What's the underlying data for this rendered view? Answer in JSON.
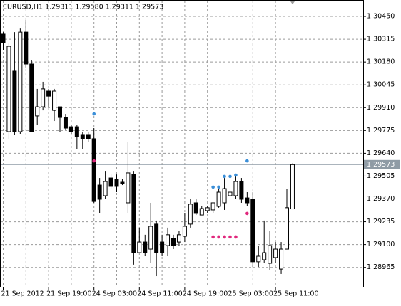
{
  "chart_data": {
    "type": "candlestick",
    "title": "EURUSD,H1 1.29311 1.29580 1.29311 1.29573",
    "categories": [
      "21 Sep 2012",
      null,
      null,
      null,
      null,
      null,
      null,
      null,
      "21 Sep 19:00",
      null,
      null,
      null,
      null,
      null,
      null,
      null,
      "24 Sep 03:00",
      null,
      null,
      null,
      null,
      null,
      null,
      null,
      "24 Sep 11:00",
      null,
      null,
      null,
      null,
      null,
      null,
      null,
      "24 Sep 19:00",
      null,
      null,
      null,
      null,
      null,
      null,
      null,
      "25 Sep 03:00",
      null,
      null,
      null,
      null,
      null,
      null,
      null,
      "25 Sep 11:00",
      null,
      null,
      null
    ],
    "open": [
      1.30345,
      1.29768,
      1.30126,
      1.29768,
      1.30357,
      1.30168,
      1.29861,
      1.29915,
      1.30008,
      1.29894,
      1.29915,
      1.29852,
      1.29797,
      1.29797,
      1.29747,
      1.29747,
      1.29726,
      1.29452,
      1.29389,
      1.29494,
      1.29486,
      1.29469,
      1.29347,
      1.29515,
      1.29052,
      1.29115,
      1.29073,
      1.29221,
      1.29115,
      1.29094,
      1.29136,
      1.29115,
      1.29149,
      1.29221,
      1.29347,
      1.29275,
      1.29301,
      1.29305,
      1.29326,
      1.29347,
      1.29389,
      1.29389,
      1.29473,
      1.29376,
      1.29368,
      1.28998,
      1.2901,
      1.28989,
      1.29023,
      1.28955,
      1.29073,
      1.29311
    ],
    "high": [
      1.30357,
      1.30294,
      1.30357,
      1.30378,
      1.30429,
      1.30189,
      1.30021,
      1.30063,
      1.30021,
      1.30021,
      1.29915,
      1.29873,
      1.2981,
      1.2981,
      1.29768,
      1.29768,
      1.29789,
      1.29494,
      1.29536,
      1.29515,
      1.29515,
      1.29486,
      1.29705,
      1.29536,
      1.292,
      1.29158,
      1.29347,
      1.29242,
      1.29158,
      1.292,
      1.29158,
      1.29179,
      1.29284,
      1.29368,
      1.29368,
      1.29326,
      1.29326,
      1.29347,
      1.29444,
      1.29494,
      1.29444,
      1.29515,
      1.29494,
      1.2941,
      1.2941,
      1.29094,
      1.29242,
      1.29179,
      1.29115,
      1.29115,
      1.29431,
      1.2958
    ],
    "low": [
      1.30252,
      1.29726,
      1.29747,
      1.29755,
      1.30147,
      1.29768,
      1.2981,
      1.29894,
      1.29915,
      1.29831,
      1.29768,
      1.29781,
      1.29755,
      1.29663,
      1.29663,
      1.29705,
      1.29347,
      1.29284,
      1.29368,
      1.29431,
      1.2941,
      1.29452,
      1.29284,
      1.28981,
      1.29052,
      1.29031,
      1.28989,
      1.28913,
      1.29031,
      1.29031,
      1.29073,
      1.29094,
      1.29115,
      1.292,
      1.29275,
      1.29275,
      1.29284,
      1.29284,
      1.29318,
      1.29305,
      1.29368,
      1.29368,
      1.29347,
      1.29326,
      1.28968,
      1.28968,
      1.28989,
      1.28947,
      1.28989,
      1.28926,
      1.29073,
      1.29311
    ],
    "close": [
      1.30294,
      1.30273,
      1.29768,
      1.30357,
      1.30168,
      1.29768,
      1.29915,
      1.30021,
      1.29978,
      1.30008,
      1.29852,
      1.29789,
      1.29768,
      1.29739,
      1.29726,
      1.29726,
      1.29355,
      1.29368,
      1.29473,
      1.29444,
      1.29444,
      1.29461,
      1.29524,
      1.29052,
      1.29115,
      1.29052,
      1.29208,
      1.29052,
      1.29052,
      1.29158,
      1.29094,
      1.29158,
      1.29208,
      1.29339,
      1.29284,
      1.29313,
      1.29318,
      1.29347,
      1.2941,
      1.29431,
      1.2941,
      1.29473,
      1.29368,
      1.29347,
      1.28998,
      1.29031,
      1.29052,
      1.29094,
      1.29073,
      1.29073,
      1.29318,
      1.29573
    ],
    "up_color": "#ffffff",
    "down_color": "#000000",
    "markers": [
      {
        "color": "#3b8fd8",
        "values": [
          null,
          null,
          null,
          null,
          null,
          null,
          null,
          null,
          null,
          null,
          null,
          null,
          null,
          null,
          null,
          null,
          1.29873,
          null,
          null,
          null,
          null,
          null,
          null,
          null,
          null,
          null,
          null,
          null,
          null,
          null,
          null,
          null,
          null,
          null,
          null,
          null,
          null,
          1.2944,
          1.2944,
          1.29503,
          1.29503,
          1.29511,
          null,
          1.29595,
          null,
          null,
          null,
          null,
          null,
          null,
          null,
          null
        ]
      },
      {
        "color": "#e0287d",
        "values": [
          null,
          null,
          null,
          null,
          null,
          null,
          null,
          null,
          null,
          null,
          null,
          null,
          null,
          null,
          null,
          null,
          1.29595,
          null,
          null,
          null,
          null,
          null,
          null,
          null,
          null,
          null,
          null,
          null,
          null,
          null,
          null,
          null,
          null,
          null,
          null,
          null,
          null,
          1.29145,
          1.29145,
          1.29145,
          1.29145,
          1.29145,
          null,
          1.29284,
          null,
          null,
          null,
          null,
          null,
          null,
          null,
          null
        ]
      }
    ],
    "ylim": [
      1.2885,
      1.30547
    ],
    "yticks": [
      {
        "value": 1.3045,
        "label": "1.30450"
      },
      1.30315,
      {
        "value": 1.3018,
        "label": "1.30180"
      },
      1.30045,
      {
        "value": 1.2991,
        "label": "1.29910"
      },
      1.29775,
      {
        "value": 1.2964,
        "label": "1.29640"
      },
      1.29505,
      {
        "value": 1.2937,
        "label": "1.29370"
      },
      1.29235,
      {
        "value": 1.291,
        "label": "1.29100"
      },
      1.28965
    ],
    "grid": true,
    "price_line_color": "#8f9ba5"
  }
}
